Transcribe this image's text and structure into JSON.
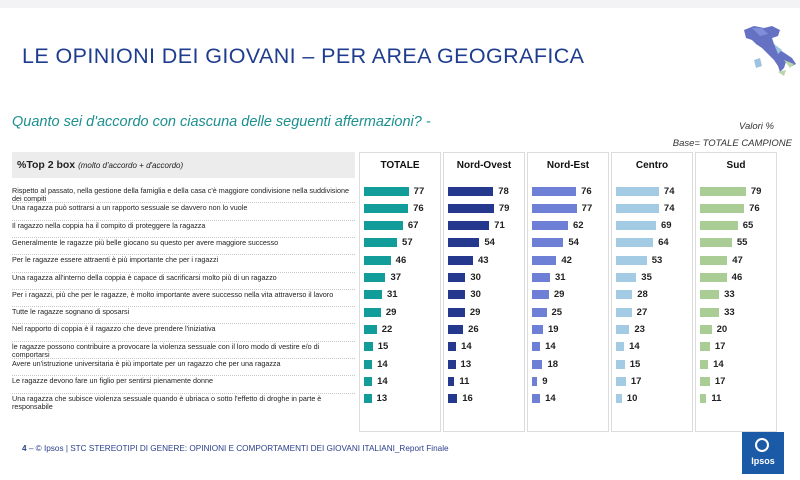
{
  "title": "LE OPINIONI DEI GIOVANI – PER AREA GEOGRAFICA",
  "question": "Quanto sei d'accordo con ciascuna delle seguenti affermazioni? -",
  "valori": "Valori %",
  "base": "Base= TOTALE CAMPIONE",
  "header_label": "%Top 2 box",
  "header_sub": "(molto d'accordo + d'accordo)",
  "footer": {
    "page": "4",
    "text": "– © Ipsos | STC STEREOTIPI DI GENERE: OPINIONI E COMPORTAMENTI DEI GIOVANI ITALIANI_Report Finale"
  },
  "logo_text": "Ipsos",
  "icons": {
    "map": "italy-map-icon",
    "logo": "ipsos-logo"
  },
  "chart_data": {
    "type": "bar",
    "orientation": "horizontal",
    "xlim": [
      0,
      100
    ],
    "categories": [
      "Rispetto al passato, nella gestione della famiglia e della casa c'è maggiore condivisione nella suddivisione dei compiti",
      "Una ragazza può sottrarsi a un rapporto sessuale se davvero non lo vuole",
      "Il ragazzo nella coppia ha il compito di proteggere la ragazza",
      "Generalmente le ragazze più belle giocano su questo per avere maggiore successo",
      "Per le ragazze essere attraenti è più importante che per i ragazzi",
      "Una ragazza all'interno della coppia è capace di sacrificarsi molto più di un ragazzo",
      "Per i ragazzi, più che per le ragazze, è molto importante avere successo nella vita attraverso il lavoro",
      "Tutte le ragazze sognano di sposarsi",
      "Nel rapporto di coppia è il ragazzo che deve prendere l'iniziativa",
      "le ragazze possono contribuire a provocare la violenza sessuale con il loro modo di vestire e/o di comportarsi",
      "Avere un'istruzione universitaria è più importate per un ragazzo che per una ragazza",
      "Le ragazze devono fare un figlio per sentirsi pienamente donne",
      "Una ragazza che subisce violenza sessuale quando è ubriaca o sotto l'effetto di droghe in parte è responsabile"
    ],
    "series": [
      {
        "name": "TOTALE",
        "color": "#139d9a",
        "values": [
          77,
          76,
          67,
          57,
          46,
          37,
          31,
          29,
          22,
          15,
          14,
          14,
          13
        ]
      },
      {
        "name": "Nord-Ovest",
        "color": "#24388e",
        "values": [
          78,
          79,
          71,
          54,
          43,
          30,
          30,
          29,
          26,
          14,
          13,
          11,
          16
        ]
      },
      {
        "name": "Nord-Est",
        "color": "#6e80d6",
        "values": [
          76,
          77,
          62,
          54,
          42,
          31,
          29,
          25,
          19,
          14,
          18,
          9,
          14
        ]
      },
      {
        "name": "Centro",
        "color": "#a3cbe4",
        "values": [
          74,
          74,
          69,
          64,
          53,
          35,
          28,
          27,
          23,
          14,
          15,
          17,
          10
        ]
      },
      {
        "name": "Sud",
        "color": "#aacd96",
        "values": [
          79,
          76,
          65,
          55,
          47,
          46,
          33,
          33,
          20,
          17,
          14,
          17,
          11
        ]
      }
    ]
  }
}
